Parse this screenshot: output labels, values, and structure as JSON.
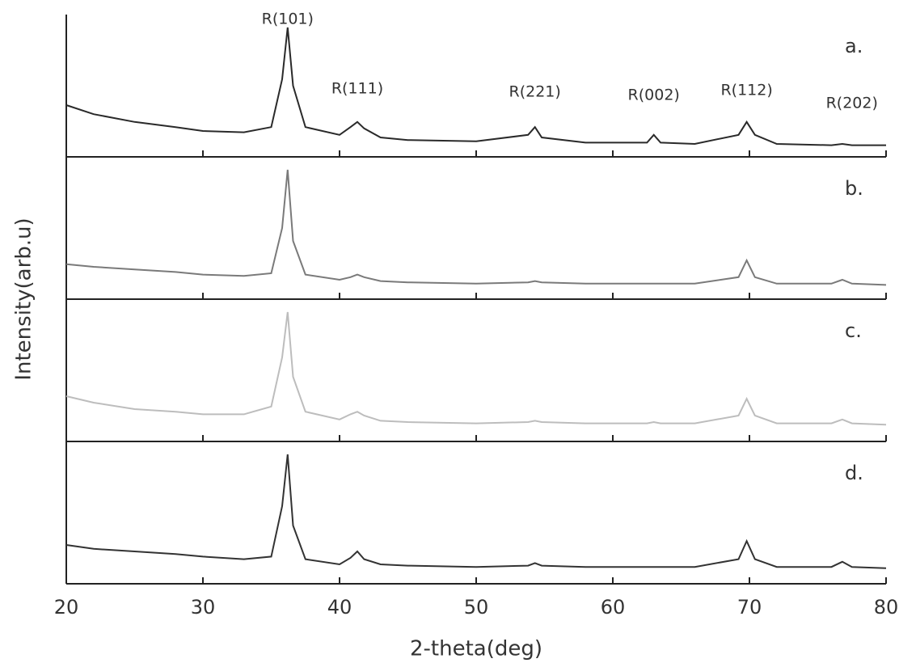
{
  "chart_data": {
    "type": "line",
    "layout": "stacked",
    "xlabel": "2-theta(deg)",
    "ylabel": "Intensity(arb.u)",
    "xlim": [
      20,
      80
    ],
    "xticks": [
      20,
      30,
      40,
      50,
      60,
      70,
      80
    ],
    "ylim": [
      0,
      100
    ],
    "x": [
      20,
      22,
      25,
      28,
      30,
      33,
      35,
      35.8,
      36.2,
      36.6,
      37.5,
      40,
      40.8,
      41.3,
      41.8,
      43,
      45,
      50,
      53.8,
      54.3,
      54.8,
      58,
      62.5,
      63,
      63.5,
      66,
      69.2,
      69.8,
      70.4,
      72,
      76,
      76.8,
      77.5,
      80
    ],
    "series": [
      {
        "name": "a.",
        "color": "#2a2a2a",
        "values": [
          35,
          28,
          22,
          18,
          15,
          14,
          18,
          55,
          95,
          50,
          18,
          12,
          18,
          22,
          17,
          10,
          8,
          7,
          12,
          18,
          10,
          6,
          6,
          12,
          6,
          5,
          12,
          22,
          12,
          5,
          4,
          5,
          4,
          4
        ]
      },
      {
        "name": "b.",
        "color": "#7a7a7a",
        "values": [
          22,
          20,
          18,
          16,
          14,
          13,
          15,
          50,
          95,
          40,
          14,
          10,
          12,
          14,
          12,
          9,
          8,
          7,
          8,
          9,
          8,
          7,
          7,
          7,
          7,
          7,
          12,
          25,
          12,
          7,
          7,
          10,
          7,
          6
        ]
      },
      {
        "name": "c.",
        "color": "#bdbdbd",
        "values": [
          30,
          25,
          20,
          18,
          16,
          16,
          22,
          60,
          95,
          45,
          18,
          12,
          16,
          18,
          15,
          11,
          10,
          9,
          10,
          11,
          10,
          9,
          9,
          10,
          9,
          9,
          15,
          28,
          15,
          9,
          9,
          12,
          9,
          8
        ]
      },
      {
        "name": "d.",
        "color": "#333333",
        "values": [
          25,
          22,
          20,
          18,
          16,
          14,
          16,
          55,
          95,
          40,
          14,
          10,
          15,
          20,
          14,
          10,
          9,
          8,
          9,
          11,
          9,
          8,
          8,
          8,
          8,
          8,
          14,
          28,
          14,
          8,
          8,
          12,
          8,
          7
        ]
      }
    ],
    "annotations": [
      {
        "text": "R(101)",
        "x": 36.2
      },
      {
        "text": "R(111)",
        "x": 41.3
      },
      {
        "text": "R(221)",
        "x": 54.3
      },
      {
        "text": "R(002)",
        "x": 63
      },
      {
        "text": "R(112)",
        "x": 69.8
      },
      {
        "text": "R(202)",
        "x": 77.5
      }
    ]
  }
}
